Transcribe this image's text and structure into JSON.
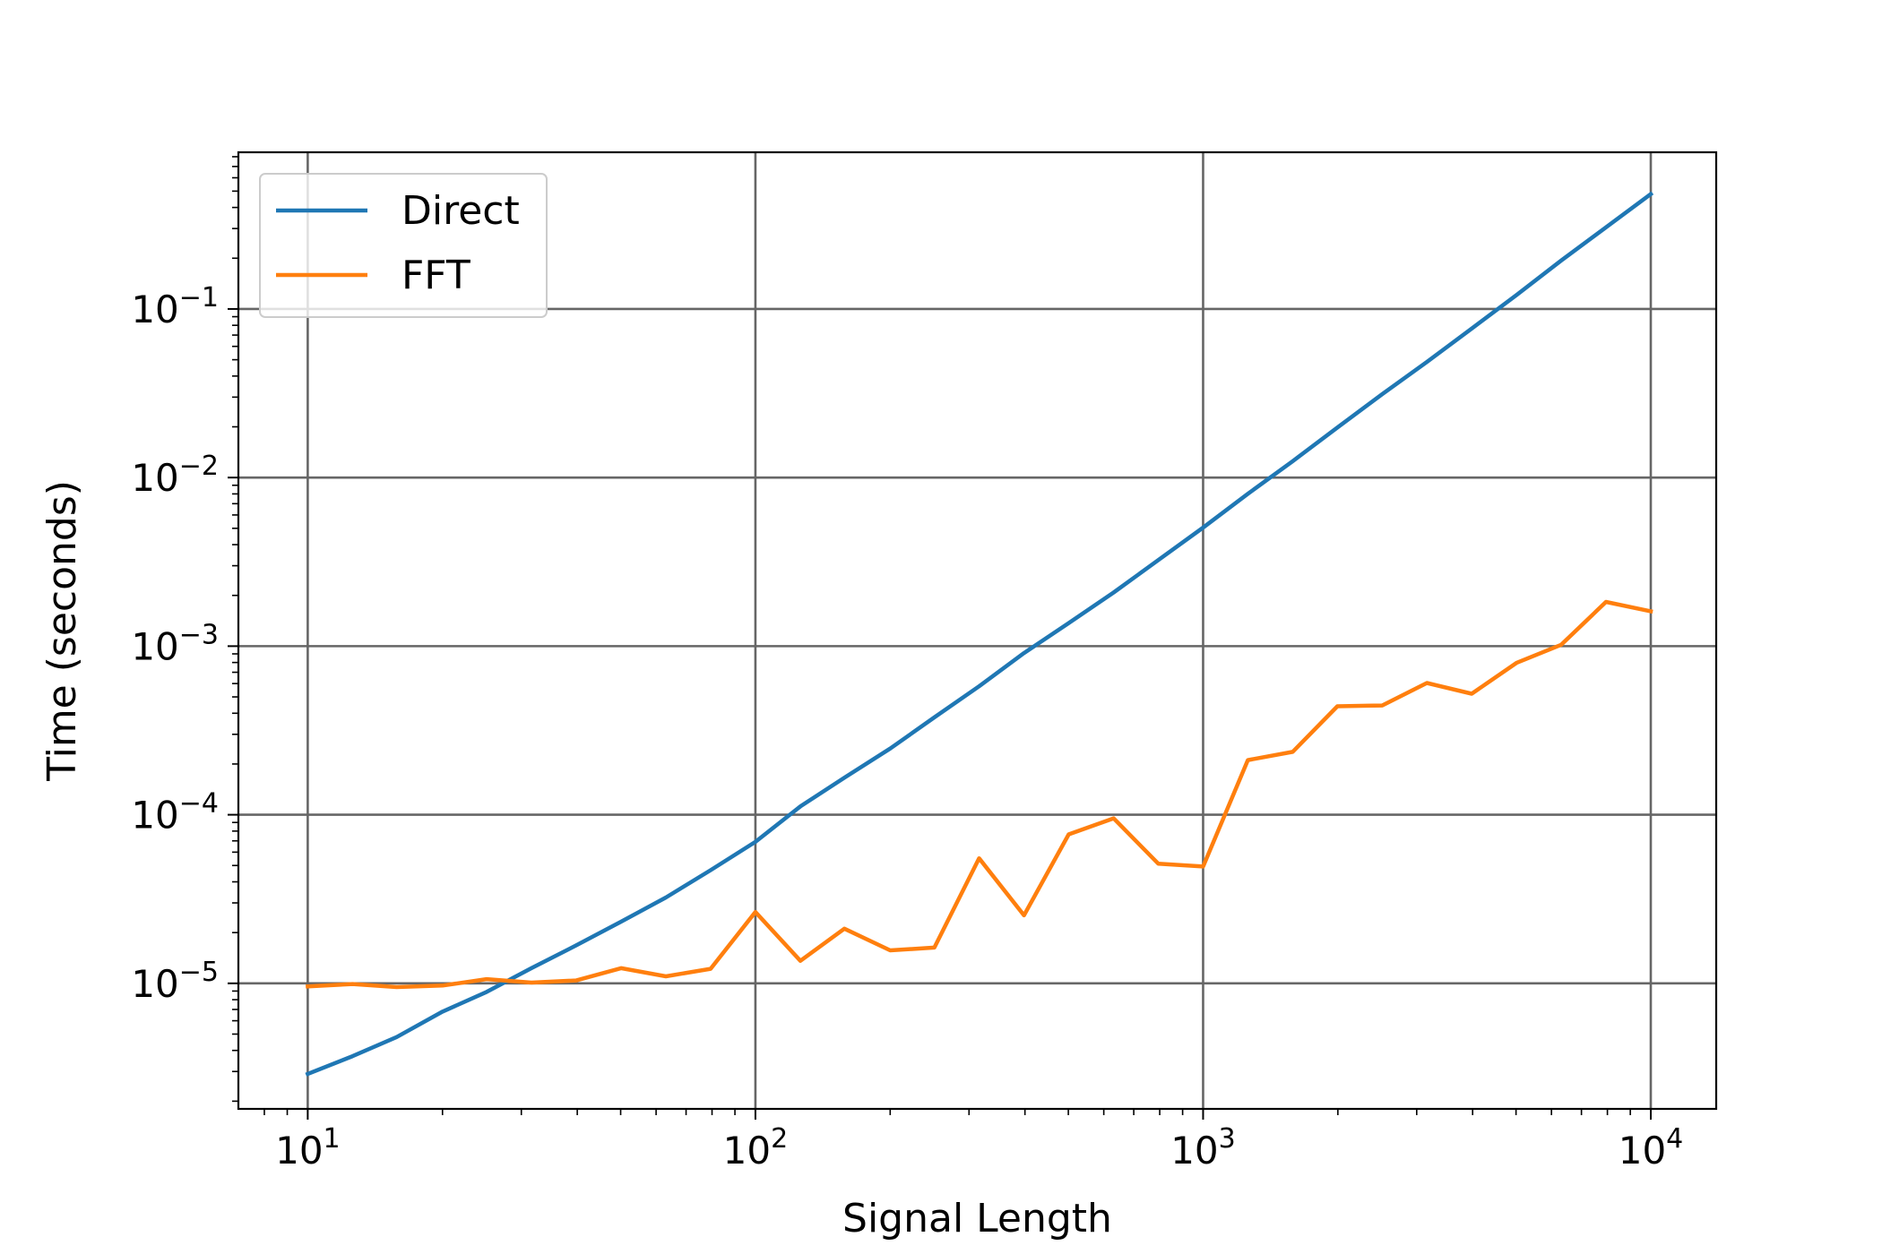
{
  "chart_data": {
    "type": "line",
    "title": "",
    "xlabel": "Signal Length",
    "ylabel": "Time (seconds)",
    "x_scale": "log",
    "y_scale": "log",
    "xlim": [
      7.0,
      14000
    ],
    "ylim": [
      1.8e-06,
      0.85
    ],
    "grid": true,
    "legend_position": "top-left",
    "x_ticks": [
      {
        "value": 10,
        "label": "10",
        "exp": "1"
      },
      {
        "value": 100,
        "label": "10",
        "exp": "2"
      },
      {
        "value": 1000,
        "label": "10",
        "exp": "3"
      },
      {
        "value": 10000,
        "label": "10",
        "exp": "4"
      }
    ],
    "y_ticks": [
      {
        "value": 1e-05,
        "label": "10",
        "exp": "−5"
      },
      {
        "value": 0.0001,
        "label": "10",
        "exp": "−4"
      },
      {
        "value": 0.001,
        "label": "10",
        "exp": "−3"
      },
      {
        "value": 0.01,
        "label": "10",
        "exp": "−2"
      },
      {
        "value": 0.1,
        "label": "10",
        "exp": "−1"
      }
    ],
    "x": [
      10,
      12.6,
      15.8,
      20,
      25.1,
      31.6,
      39.8,
      50.1,
      63.1,
      79.4,
      100,
      126,
      158,
      200,
      251,
      316,
      398,
      501,
      631,
      794,
      1000,
      1259,
      1585,
      1995,
      2512,
      3162,
      3981,
      5012,
      6310,
      7943,
      10000
    ],
    "series": [
      {
        "name": "Direct",
        "color": "#1f77b4",
        "values": [
          2.9e-06,
          3.7e-06,
          4.8e-06,
          6.8e-06,
          8.9e-06,
          1.23e-05,
          1.68e-05,
          2.32e-05,
          3.23e-05,
          4.69e-05,
          6.9e-05,
          0.000112,
          0.000166,
          0.000247,
          0.000378,
          0.000578,
          0.00091,
          0.00137,
          0.00208,
          0.00324,
          0.00505,
          0.00801,
          0.0125,
          0.0198,
          0.0312,
          0.0485,
          0.0765,
          0.121,
          0.194,
          0.305,
          0.48
        ]
      },
      {
        "name": "FFT",
        "color": "#ff7f0e",
        "values": [
          9.6e-06,
          9.9e-06,
          9.5e-06,
          9.7e-06,
          1.06e-05,
          1.01e-05,
          1.04e-05,
          1.23e-05,
          1.1e-05,
          1.22e-05,
          2.65e-05,
          1.36e-05,
          2.11e-05,
          1.57e-05,
          1.63e-05,
          5.52e-05,
          2.53e-05,
          7.65e-05,
          9.52e-05,
          5.13e-05,
          4.93e-05,
          0.000211,
          0.000236,
          0.00044,
          0.000445,
          0.000605,
          0.000522,
          0.000795,
          0.00102,
          0.00183,
          0.00161
        ]
      }
    ]
  }
}
